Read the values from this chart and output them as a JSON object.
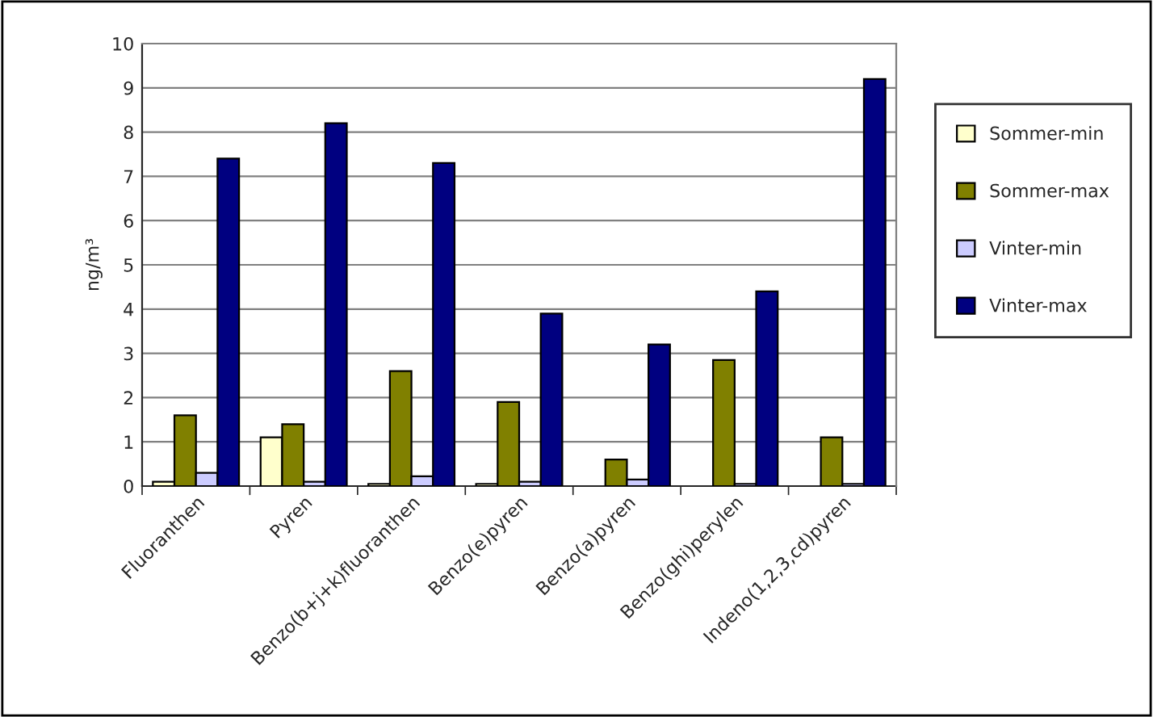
{
  "chart_data": {
    "type": "bar",
    "ylabel": "ng/m³",
    "categories": [
      "Fluoranthen",
      "Pyren",
      "Benzo(b+j+k)fluoranthen",
      "Benzo(e)pyren",
      "Benzo(a)pyren",
      "Benzo(ghi)perylen",
      "Indeno(1,2,3,cd)pyren"
    ],
    "series": [
      {
        "name": "Sommer-min",
        "color": "#ffffcc",
        "values": [
          0.1,
          1.1,
          0.05,
          0.05,
          null,
          null,
          null
        ]
      },
      {
        "name": "Sommer-max",
        "color": "#808000",
        "values": [
          1.6,
          1.4,
          2.6,
          1.9,
          0.6,
          2.85,
          1.1
        ]
      },
      {
        "name": "Vinter-min",
        "color": "#ccccff",
        "values": [
          0.3,
          0.1,
          0.22,
          0.1,
          0.15,
          0.05,
          0.05
        ]
      },
      {
        "name": "Vinter-max",
        "color": "#000080",
        "values": [
          7.4,
          8.2,
          7.3,
          3.9,
          3.2,
          4.4,
          9.2
        ]
      }
    ],
    "ylim": [
      0,
      10
    ],
    "yticks": [
      0,
      1,
      2,
      3,
      4,
      5,
      6,
      7,
      8,
      9,
      10
    ],
    "grid": "y",
    "legend": "right"
  }
}
